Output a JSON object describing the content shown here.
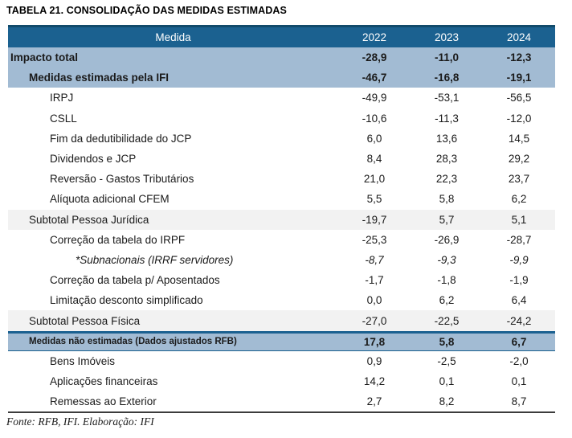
{
  "title": "TABELA 21. CONSOLIDAÇÃO DAS MEDIDAS ESTIMADAS",
  "footer": "Fonte: RFB, IFI. Elaboração: IFI",
  "colors": {
    "header_bg": "#1b6190",
    "header_border": "#124b6b",
    "highlight_bg": "#a2bbd3",
    "subtotal_bg": "#f2f2f2"
  },
  "table": {
    "columns": [
      "Medida",
      "2022",
      "2023",
      "2024"
    ],
    "rows": [
      {
        "label": "Impacto total",
        "values": [
          "-28,9",
          "-11,0",
          "-12,3"
        ],
        "bg": "blue",
        "bold": true,
        "italic": false,
        "small": false,
        "indent": 0,
        "separator": false
      },
      {
        "label": "Medidas estimadas pela IFI",
        "values": [
          "-46,7",
          "-16,8",
          "-19,1"
        ],
        "bg": "blue",
        "bold": true,
        "italic": false,
        "small": false,
        "indent": 1,
        "separator": false
      },
      {
        "label": "IRPJ",
        "values": [
          "-49,9",
          "-53,1",
          "-56,5"
        ],
        "bg": "white",
        "bold": false,
        "italic": false,
        "small": false,
        "indent": 2,
        "separator": false
      },
      {
        "label": "CSLL",
        "values": [
          "-10,6",
          "-11,3",
          "-12,0"
        ],
        "bg": "white",
        "bold": false,
        "italic": false,
        "small": false,
        "indent": 2,
        "separator": false
      },
      {
        "label": "Fim da dedutibilidade do JCP",
        "values": [
          "6,0",
          "13,6",
          "14,5"
        ],
        "bg": "white",
        "bold": false,
        "italic": false,
        "small": false,
        "indent": 2,
        "separator": false
      },
      {
        "label": "Dividendos e JCP",
        "values": [
          "8,4",
          "28,3",
          "29,2"
        ],
        "bg": "white",
        "bold": false,
        "italic": false,
        "small": false,
        "indent": 2,
        "separator": false
      },
      {
        "label": "Reversão - Gastos Tributários",
        "values": [
          "21,0",
          "22,3",
          "23,7"
        ],
        "bg": "white",
        "bold": false,
        "italic": false,
        "small": false,
        "indent": 2,
        "separator": false
      },
      {
        "label": "Alíquota adicional CFEM",
        "values": [
          "5,5",
          "5,8",
          "6,2"
        ],
        "bg": "white",
        "bold": false,
        "italic": false,
        "small": false,
        "indent": 2,
        "separator": false
      },
      {
        "label": "Subtotal Pessoa Jurídica",
        "values": [
          "-19,7",
          "5,7",
          "5,1"
        ],
        "bg": "gray",
        "bold": false,
        "italic": false,
        "small": false,
        "indent": 1,
        "separator": false
      },
      {
        "label": "Correção da tabela do IRPF",
        "values": [
          "-25,3",
          "-26,9",
          "-28,7"
        ],
        "bg": "white",
        "bold": false,
        "italic": false,
        "small": false,
        "indent": 2,
        "separator": false
      },
      {
        "label": "*Subnacionais (IRRF servidores)",
        "values": [
          "-8,7",
          "-9,3",
          "-9,9"
        ],
        "bg": "white",
        "bold": false,
        "italic": true,
        "small": false,
        "indent": 3,
        "separator": false
      },
      {
        "label": "Correção da tabela p/ Aposentados",
        "values": [
          "-1,7",
          "-1,8",
          "-1,9"
        ],
        "bg": "white",
        "bold": false,
        "italic": false,
        "small": false,
        "indent": 2,
        "separator": false
      },
      {
        "label": "Limitação desconto simplificado",
        "values": [
          "0,0",
          "6,2",
          "6,4"
        ],
        "bg": "white",
        "bold": false,
        "italic": false,
        "small": false,
        "indent": 2,
        "separator": false
      },
      {
        "label": "Subtotal Pessoa Física",
        "values": [
          "-27,0",
          "-22,5",
          "-24,2"
        ],
        "bg": "gray",
        "bold": false,
        "italic": false,
        "small": false,
        "indent": 1,
        "separator": false
      },
      {
        "label": "Medidas não estimadas (Dados ajustados RFB)",
        "values": [
          "17,8",
          "5,8",
          "6,7"
        ],
        "bg": "blue",
        "bold": true,
        "italic": false,
        "small": true,
        "indent": 1,
        "separator": true
      },
      {
        "label": "Bens Imóveis",
        "values": [
          "0,9",
          "-2,5",
          "-2,0"
        ],
        "bg": "white",
        "bold": false,
        "italic": false,
        "small": false,
        "indent": 2,
        "separator": false
      },
      {
        "label": "Aplicações financeiras",
        "values": [
          "14,2",
          "0,1",
          "0,1"
        ],
        "bg": "white",
        "bold": false,
        "italic": false,
        "small": false,
        "indent": 2,
        "separator": false
      },
      {
        "label": "Remessas ao Exterior",
        "values": [
          "2,7",
          "8,2",
          "8,7"
        ],
        "bg": "white",
        "bold": false,
        "italic": false,
        "small": false,
        "indent": 2,
        "separator": false
      }
    ]
  }
}
